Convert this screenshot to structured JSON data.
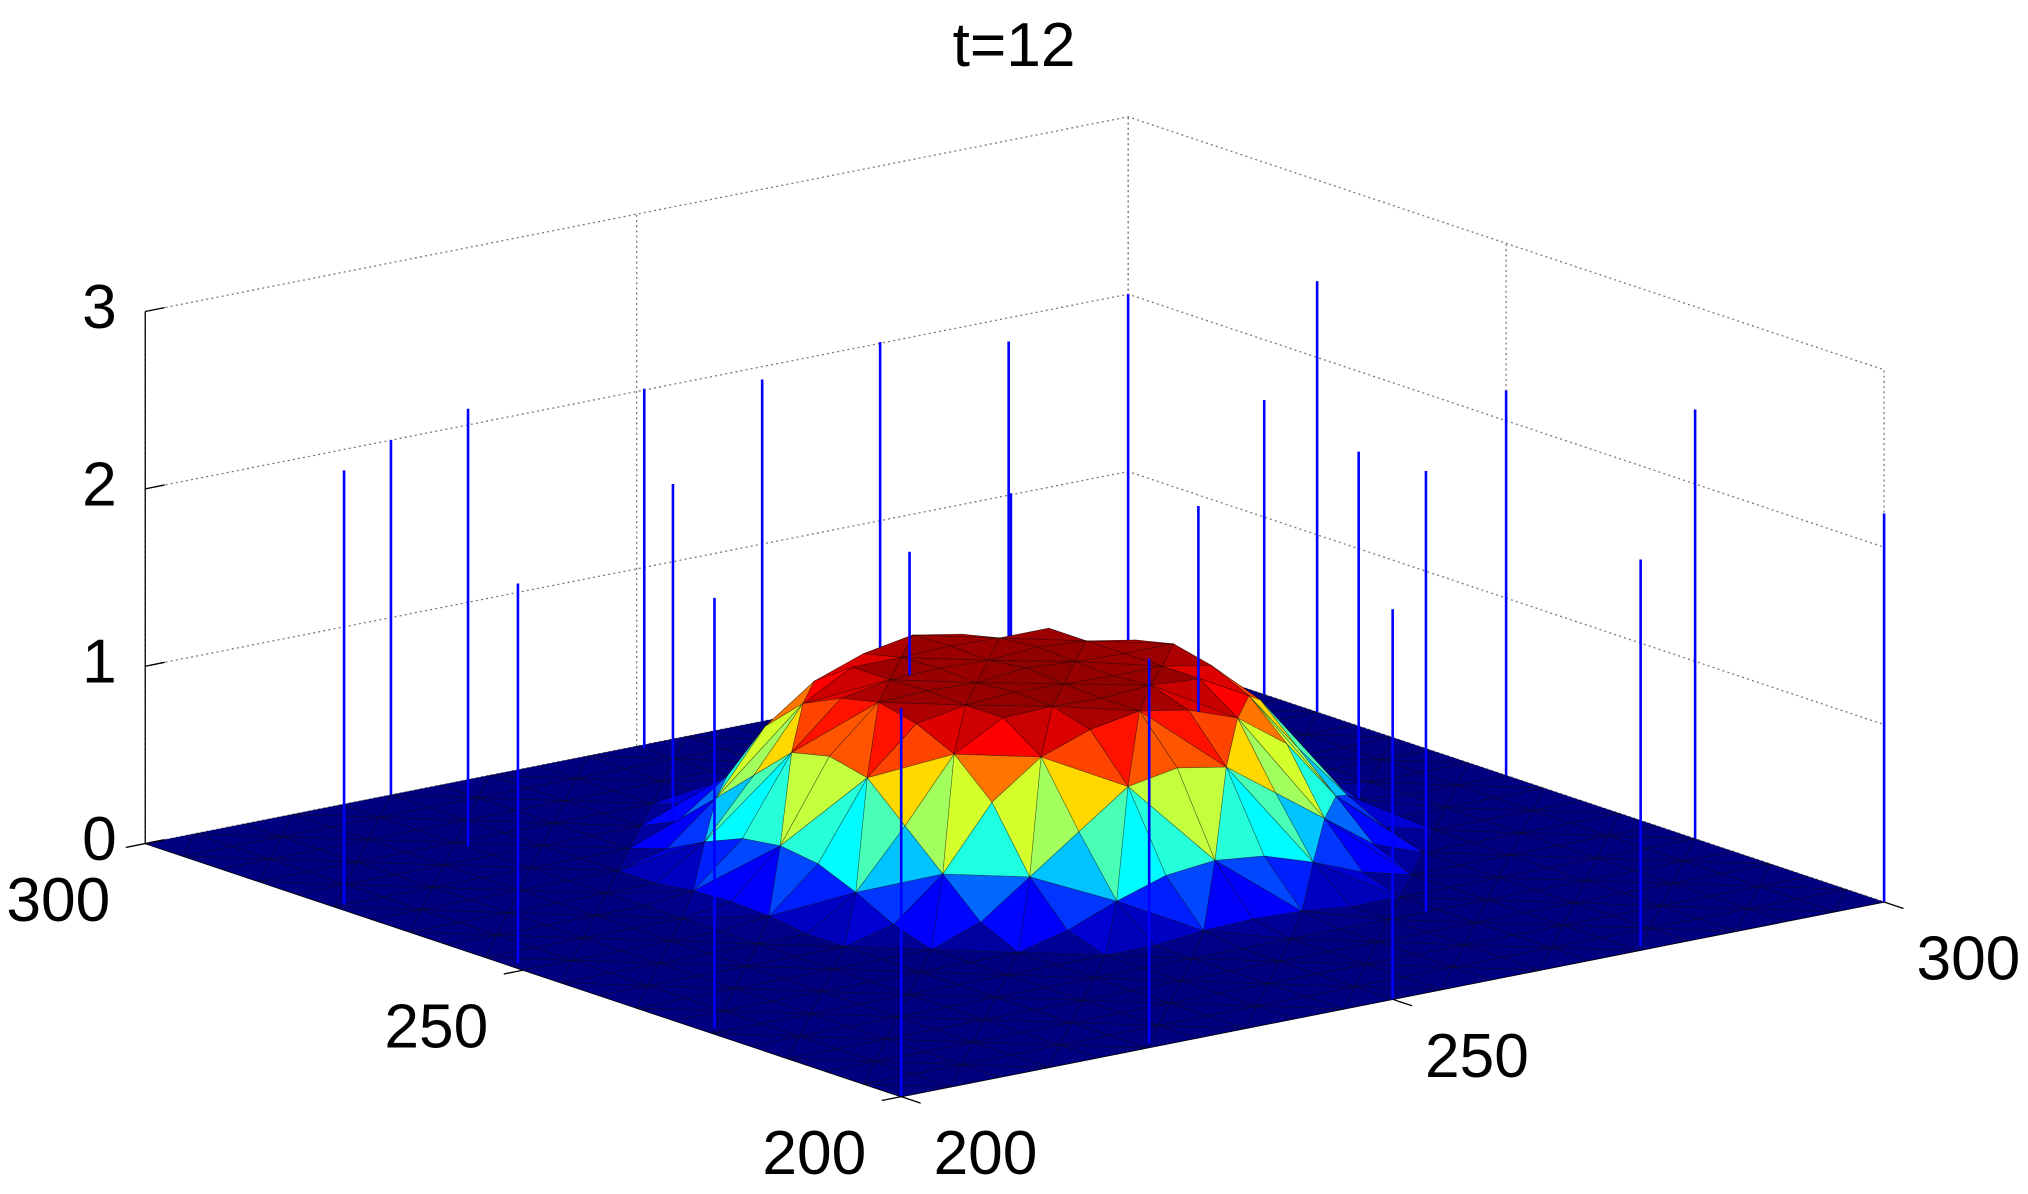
{
  "chart_data": {
    "type": "surface3d",
    "title": "t=12",
    "colormap": "jet",
    "x": [
      200,
      205,
      210,
      215,
      220,
      225,
      230,
      235,
      240,
      245,
      250,
      255,
      260,
      265,
      270,
      275,
      280,
      285,
      290,
      295,
      300
    ],
    "y": [
      200,
      205,
      210,
      215,
      220,
      225,
      230,
      235,
      240,
      245,
      250,
      255,
      260,
      265,
      270,
      275,
      280,
      285,
      290,
      295,
      300
    ],
    "z": [
      [
        0,
        0,
        0,
        0,
        0,
        0,
        0,
        0,
        0,
        0,
        0,
        0,
        0,
        0,
        0,
        0,
        0,
        0,
        0,
        0,
        0
      ],
      [
        0,
        0,
        0,
        0,
        0,
        0,
        0,
        0,
        0,
        0,
        0,
        0,
        0,
        0,
        0,
        0,
        0,
        0,
        0,
        0,
        0
      ],
      [
        0,
        0,
        0,
        0,
        0,
        0,
        0,
        0,
        0,
        0,
        0,
        0,
        0,
        0,
        0,
        0,
        0,
        0,
        0,
        0,
        0
      ],
      [
        0,
        0,
        0,
        0,
        0,
        0,
        0,
        0,
        0,
        0,
        0,
        0,
        0,
        0,
        0,
        0,
        0,
        0,
        0,
        0,
        0
      ],
      [
        0,
        0,
        0,
        0,
        0,
        0,
        0,
        0,
        0,
        0,
        0,
        0,
        0,
        0,
        0,
        0,
        0,
        0,
        0,
        0,
        0
      ],
      [
        0,
        0,
        0,
        0,
        0,
        0,
        0,
        0,
        0,
        0,
        0.03,
        0.04,
        0.03,
        0,
        0,
        0,
        0,
        0,
        0,
        0,
        0
      ],
      [
        0,
        0,
        0,
        0,
        0,
        0,
        0,
        0,
        0.07,
        0.18,
        0.27,
        0.3,
        0.27,
        0.18,
        0.07,
        0,
        0,
        0,
        0,
        0,
        0
      ],
      [
        0,
        0,
        0,
        0,
        0,
        0,
        0,
        0.1,
        0.3,
        0.5,
        0.7,
        0.75,
        0.7,
        0.5,
        0.3,
        0.1,
        0,
        0,
        0,
        0,
        0
      ],
      [
        0,
        0,
        0,
        0,
        0,
        0,
        0.07,
        0.3,
        0.65,
        0.85,
        0.95,
        1,
        0.95,
        0.85,
        0.65,
        0.3,
        0.07,
        0,
        0,
        0,
        0
      ],
      [
        0,
        0,
        0,
        0,
        0,
        0,
        0.18,
        0.5,
        0.85,
        1,
        1.01,
        1,
        1.02,
        1,
        0.85,
        0.5,
        0.18,
        0,
        0,
        0,
        0
      ],
      [
        0,
        0,
        0,
        0,
        0,
        0.03,
        0.27,
        0.7,
        0.95,
        1,
        1.02,
        1.01,
        1,
        1,
        0.95,
        0.7,
        0.27,
        0.03,
        0,
        0,
        0
      ],
      [
        0,
        0,
        0,
        0,
        0,
        0.04,
        0.3,
        0.75,
        1,
        1.01,
        1,
        1.03,
        1.01,
        1,
        1,
        0.75,
        0.3,
        0.04,
        0,
        0,
        0
      ],
      [
        0,
        0,
        0,
        0,
        0,
        0.03,
        0.27,
        0.7,
        0.95,
        1,
        1.01,
        1,
        1.02,
        1,
        0.95,
        0.7,
        0.27,
        0.03,
        0,
        0,
        0
      ],
      [
        0,
        0,
        0,
        0,
        0,
        0,
        0.18,
        0.5,
        0.85,
        1,
        1,
        1.01,
        1,
        1,
        0.85,
        0.5,
        0.18,
        0,
        0,
        0,
        0
      ],
      [
        0,
        0,
        0,
        0,
        0,
        0,
        0.07,
        0.3,
        0.65,
        0.85,
        0.95,
        1,
        0.95,
        0.85,
        0.65,
        0.3,
        0.07,
        0,
        0,
        0,
        0
      ],
      [
        0,
        0,
        0,
        0,
        0,
        0,
        0,
        0.1,
        0.3,
        0.5,
        0.7,
        0.75,
        0.7,
        0.5,
        0.3,
        0.1,
        0,
        0,
        0,
        0,
        0
      ],
      [
        0,
        0,
        0,
        0,
        0,
        0,
        0,
        0,
        0.07,
        0.18,
        0.27,
        0.3,
        0.27,
        0.18,
        0.07,
        0,
        0,
        0,
        0,
        0,
        0
      ],
      [
        0,
        0,
        0,
        0,
        0,
        0,
        0,
        0,
        0,
        0,
        0.03,
        0.04,
        0.03,
        0,
        0,
        0,
        0,
        0,
        0,
        0,
        0
      ],
      [
        0,
        0,
        0,
        0,
        0,
        0,
        0,
        0,
        0,
        0,
        0,
        0,
        0,
        0,
        0,
        0,
        0,
        0,
        0,
        0,
        0
      ],
      [
        0,
        0,
        0,
        0,
        0,
        0,
        0,
        0,
        0,
        0,
        0,
        0,
        0,
        0,
        0,
        0,
        0,
        0,
        0,
        0,
        0
      ],
      [
        0,
        0,
        0,
        0,
        0,
        0,
        0,
        0,
        0,
        0,
        0,
        0,
        0,
        0,
        0,
        0,
        0,
        0,
        0,
        0,
        0
      ]
    ],
    "xlim": [
      200,
      300
    ],
    "ylim": [
      200,
      300
    ],
    "zlim": [
      0,
      3
    ],
    "xticks": [
      200,
      250,
      300
    ],
    "yticks": [
      200,
      250,
      300
    ],
    "zticks": [
      0,
      1,
      2,
      3
    ],
    "grid": true,
    "stems": {
      "color": "#0000ff",
      "x": [
        275,
        300,
        282,
        252,
        299,
        277,
        226,
        299,
        299,
        260,
        200,
        295,
        270,
        300,
        201,
        240,
        282,
        275,
        250,
        200,
        219,
        250,
        201,
        225,
        200
      ],
      "y": [
        201,
        225,
        219,
        201,
        250,
        236,
        201,
        262,
        274,
        247,
        200,
        284,
        265,
        300,
        226,
        261,
        300,
        300,
        285,
        250,
        268,
        300,
        276,
        300,
        300
      ],
      "z": [
        2.45,
        2.0,
        2.5,
        2.14,
        2.03,
        1.96,
        2.43,
        1.95,
        2.03,
        1.7,
        2.19,
        1.98,
        1.69,
        2.0,
        2.17,
        2.09,
        1.66,
        2.43,
        1.99,
        2.2,
        2.51,
        2.17,
        2.18,
        2.42,
        2.19
      ]
    }
  }
}
